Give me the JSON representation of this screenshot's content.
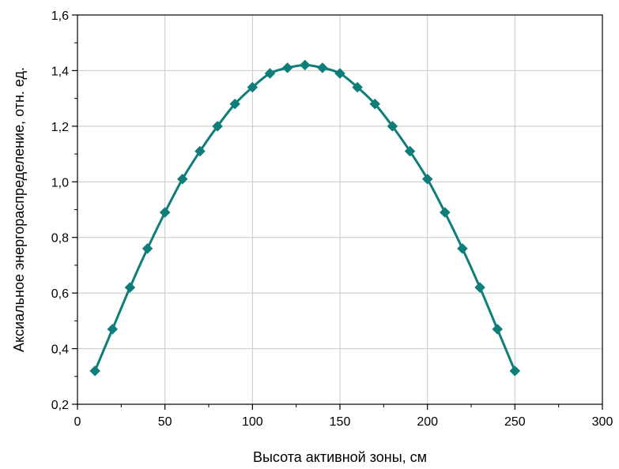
{
  "chart_data": {
    "type": "line",
    "title": "",
    "xlabel": "Высота активной зоны, см",
    "ylabel": "Аксиальное энергораспределение, отн. ед.",
    "xlim": [
      0,
      300
    ],
    "ylim": [
      0.2,
      1.6
    ],
    "xticks": [
      0,
      50,
      100,
      150,
      200,
      250,
      300
    ],
    "xtick_labels": [
      "0",
      "50",
      "100",
      "150",
      "200",
      "250",
      "300"
    ],
    "yticks": [
      0.2,
      0.4,
      0.6,
      0.8,
      1.0,
      1.2,
      1.4,
      1.6
    ],
    "ytick_labels": [
      "0,2",
      "0,4",
      "0,6",
      "0,8",
      "1,0",
      "1,2",
      "1,4",
      "1,6"
    ],
    "grid": true,
    "series": [
      {
        "marker": "diamond",
        "color": "#0f7d7a",
        "x": [
          10,
          20,
          30,
          40,
          50,
          60,
          70,
          80,
          90,
          100,
          110,
          120,
          130,
          140,
          150,
          160,
          170,
          180,
          190,
          200,
          210,
          220,
          230,
          240,
          250
        ],
        "y": [
          0.32,
          0.47,
          0.62,
          0.76,
          0.89,
          1.01,
          1.11,
          1.2,
          1.28,
          1.34,
          1.39,
          1.41,
          1.42,
          1.41,
          1.39,
          1.34,
          1.28,
          1.2,
          1.11,
          1.01,
          0.89,
          0.76,
          0.62,
          0.47,
          0.32
        ]
      }
    ]
  }
}
